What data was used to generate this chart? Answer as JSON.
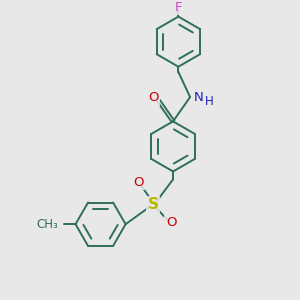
{
  "bg": "#e8e8e8",
  "bc": "#2d6e5e",
  "F_color": "#cc44cc",
  "N_color": "#2020bb",
  "O_color": "#cc0000",
  "S_color": "#b8b800",
  "lw": 1.4,
  "ring_r": 0.38,
  "xlim": [
    -0.5,
    3.5
  ],
  "ylim": [
    -0.3,
    4.2
  ]
}
